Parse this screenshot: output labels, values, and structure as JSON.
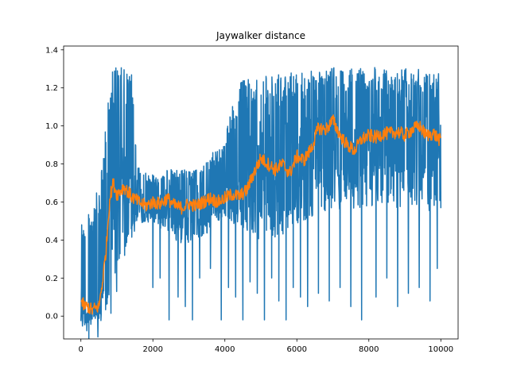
{
  "chart_data": {
    "type": "line",
    "title": "Jaywalker distance",
    "xlabel": "",
    "ylabel": "",
    "xlim": [
      -480,
      10480
    ],
    "ylim": [
      -0.12,
      1.42
    ],
    "xticks": [
      0,
      2000,
      4000,
      6000,
      8000,
      10000
    ],
    "xtick_labels": [
      "0",
      "2000",
      "4000",
      "6000",
      "8000",
      "10000"
    ],
    "yticks": [
      0.0,
      0.2,
      0.4,
      0.6,
      0.8,
      1.0,
      1.2,
      1.4
    ],
    "ytick_labels": [
      "0.0",
      "0.2",
      "0.4",
      "0.6",
      "0.8",
      "1.0",
      "1.2",
      "1.4"
    ],
    "grid": false,
    "series": [
      {
        "color": "#1f77b4",
        "style": "raw_noisy",
        "envelope_note": "high-frequency noisy signal; upper/lower envelopes approximate",
        "x": [
          0,
          100,
          200,
          300,
          400,
          500,
          600,
          700,
          800,
          900,
          1000,
          1100,
          1200,
          1300,
          1400,
          1500,
          1600,
          1800,
          2000,
          2200,
          2400,
          2600,
          2800,
          3000,
          3200,
          3400,
          3600,
          3800,
          4000,
          4200,
          4400,
          4600,
          4800,
          5000,
          5200,
          5400,
          5600,
          5800,
          6000,
          6200,
          6400,
          6600,
          6800,
          7000,
          7200,
          7400,
          7600,
          7800,
          8000,
          8200,
          8400,
          8600,
          8800,
          9000,
          9200,
          9400,
          9600,
          9800,
          10000
        ],
        "upper": [
          0.72,
          0.45,
          0.55,
          0.6,
          0.62,
          0.7,
          0.82,
          1.05,
          1.35,
          1.3,
          1.32,
          1.3,
          1.33,
          1.28,
          1.3,
          1.0,
          0.78,
          0.76,
          0.75,
          0.76,
          0.77,
          0.77,
          0.77,
          0.77,
          0.77,
          0.8,
          0.85,
          0.88,
          0.95,
          1.1,
          1.23,
          1.25,
          1.25,
          1.27,
          1.26,
          1.26,
          1.28,
          1.28,
          1.29,
          1.3,
          1.3,
          1.31,
          1.3,
          1.31,
          1.3,
          1.3,
          1.31,
          1.3,
          1.3,
          1.31,
          1.31,
          1.3,
          1.3,
          1.31,
          1.32,
          1.31,
          1.31,
          1.3,
          1.3
        ],
        "lower": [
          -0.05,
          -0.03,
          -0.03,
          -0.03,
          -0.03,
          -0.03,
          -0.02,
          -0.02,
          -0.02,
          -0.02,
          0.1,
          0.2,
          0.3,
          0.35,
          0.4,
          0.45,
          0.48,
          0.5,
          0.48,
          0.45,
          0.42,
          0.4,
          0.38,
          0.36,
          0.4,
          0.42,
          0.45,
          0.5,
          0.52,
          0.5,
          0.48,
          0.45,
          0.42,
          0.4,
          0.38,
          0.4,
          0.42,
          0.45,
          0.48,
          0.5,
          0.52,
          0.55,
          0.55,
          0.56,
          0.56,
          0.55,
          0.55,
          0.56,
          0.57,
          0.58,
          0.58,
          0.58,
          0.57,
          0.57,
          0.56,
          0.56,
          0.55,
          0.55,
          0.55
        ],
        "drops_x": [
          2000,
          2200,
          2450,
          2700,
          2900,
          3100,
          3300,
          3600,
          3900,
          4100,
          4300,
          4500,
          4700,
          4900,
          5100,
          5300,
          5500,
          5700,
          5900,
          6100,
          6300,
          6600,
          6900,
          7200,
          7500,
          7800,
          8200,
          8500,
          8800,
          9100,
          9400,
          9700,
          9900
        ],
        "drops_y": [
          0.15,
          0.2,
          -0.02,
          0.1,
          0.05,
          -0.02,
          0.2,
          0.25,
          -0.02,
          0.15,
          0.1,
          -0.02,
          0.18,
          0.12,
          -0.02,
          0.2,
          0.08,
          -0.02,
          0.15,
          0.1,
          0.05,
          0.12,
          0.08,
          0.15,
          0.05,
          -0.02,
          0.1,
          0.2,
          0.05,
          0.12,
          0.15,
          0.08,
          0.25
        ]
      },
      {
        "color": "#ff7f0e",
        "style": "smoothed",
        "x": [
          0,
          100,
          200,
          300,
          400,
          500,
          600,
          700,
          800,
          900,
          1000,
          1200,
          1400,
          1600,
          1800,
          2000,
          2200,
          2400,
          2600,
          2800,
          3000,
          3200,
          3400,
          3600,
          3800,
          4000,
          4200,
          4400,
          4600,
          4800,
          5000,
          5200,
          5400,
          5600,
          5800,
          6000,
          6200,
          6400,
          6600,
          6800,
          7000,
          7200,
          7400,
          7600,
          7800,
          8000,
          8200,
          8400,
          8600,
          8800,
          9000,
          9200,
          9400,
          9600,
          9800,
          10000
        ],
        "y": [
          0.08,
          0.05,
          0.05,
          0.03,
          0.04,
          0.05,
          0.18,
          0.35,
          0.62,
          0.7,
          0.64,
          0.68,
          0.63,
          0.6,
          0.58,
          0.6,
          0.59,
          0.62,
          0.58,
          0.57,
          0.59,
          0.58,
          0.6,
          0.62,
          0.6,
          0.62,
          0.64,
          0.63,
          0.66,
          0.75,
          0.83,
          0.8,
          0.77,
          0.8,
          0.75,
          0.84,
          0.82,
          0.88,
          0.99,
          0.98,
          1.03,
          0.95,
          0.9,
          0.87,
          0.93,
          0.95,
          0.94,
          0.96,
          0.96,
          0.97,
          0.95,
          0.98,
          1.0,
          0.95,
          0.96,
          0.92
        ]
      }
    ]
  }
}
